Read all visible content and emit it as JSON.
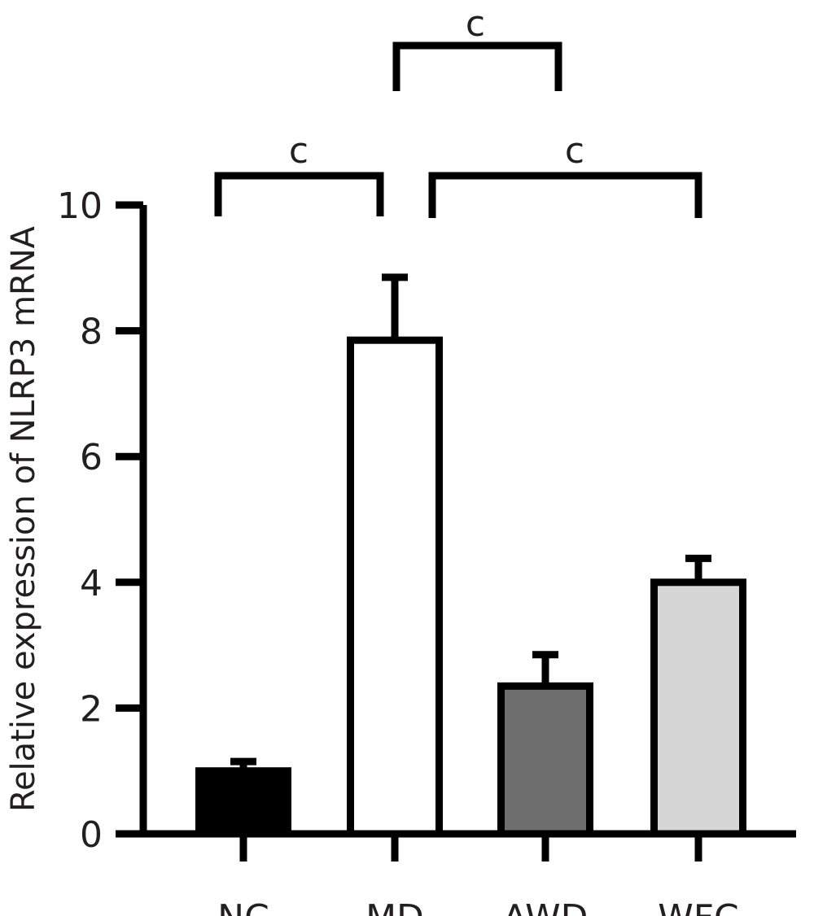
{
  "chart_data": {
    "type": "bar",
    "title": "",
    "xlabel": "",
    "ylabel": "Relative expression of NLRP3 mRNA",
    "ylim": [
      0,
      10
    ],
    "yticks": [
      "0",
      "2",
      "4",
      "6",
      "8",
      "10"
    ],
    "categories": [
      "NC",
      "MD",
      "AWD",
      "WFC"
    ],
    "values": [
      1.0,
      7.85,
      2.35,
      4.0
    ],
    "errors": [
      0.15,
      1.0,
      0.5,
      0.38
    ],
    "colors": [
      "#000000",
      "#ffffff",
      "#6e6e6e",
      "#d6d6d6"
    ],
    "grid": false,
    "significance": [
      {
        "from": "NC",
        "to": "MD",
        "label": "c"
      },
      {
        "from": "MD",
        "to": "WFC",
        "label": "c"
      },
      {
        "from": "MD",
        "to": "AWD",
        "label": "c"
      }
    ]
  }
}
